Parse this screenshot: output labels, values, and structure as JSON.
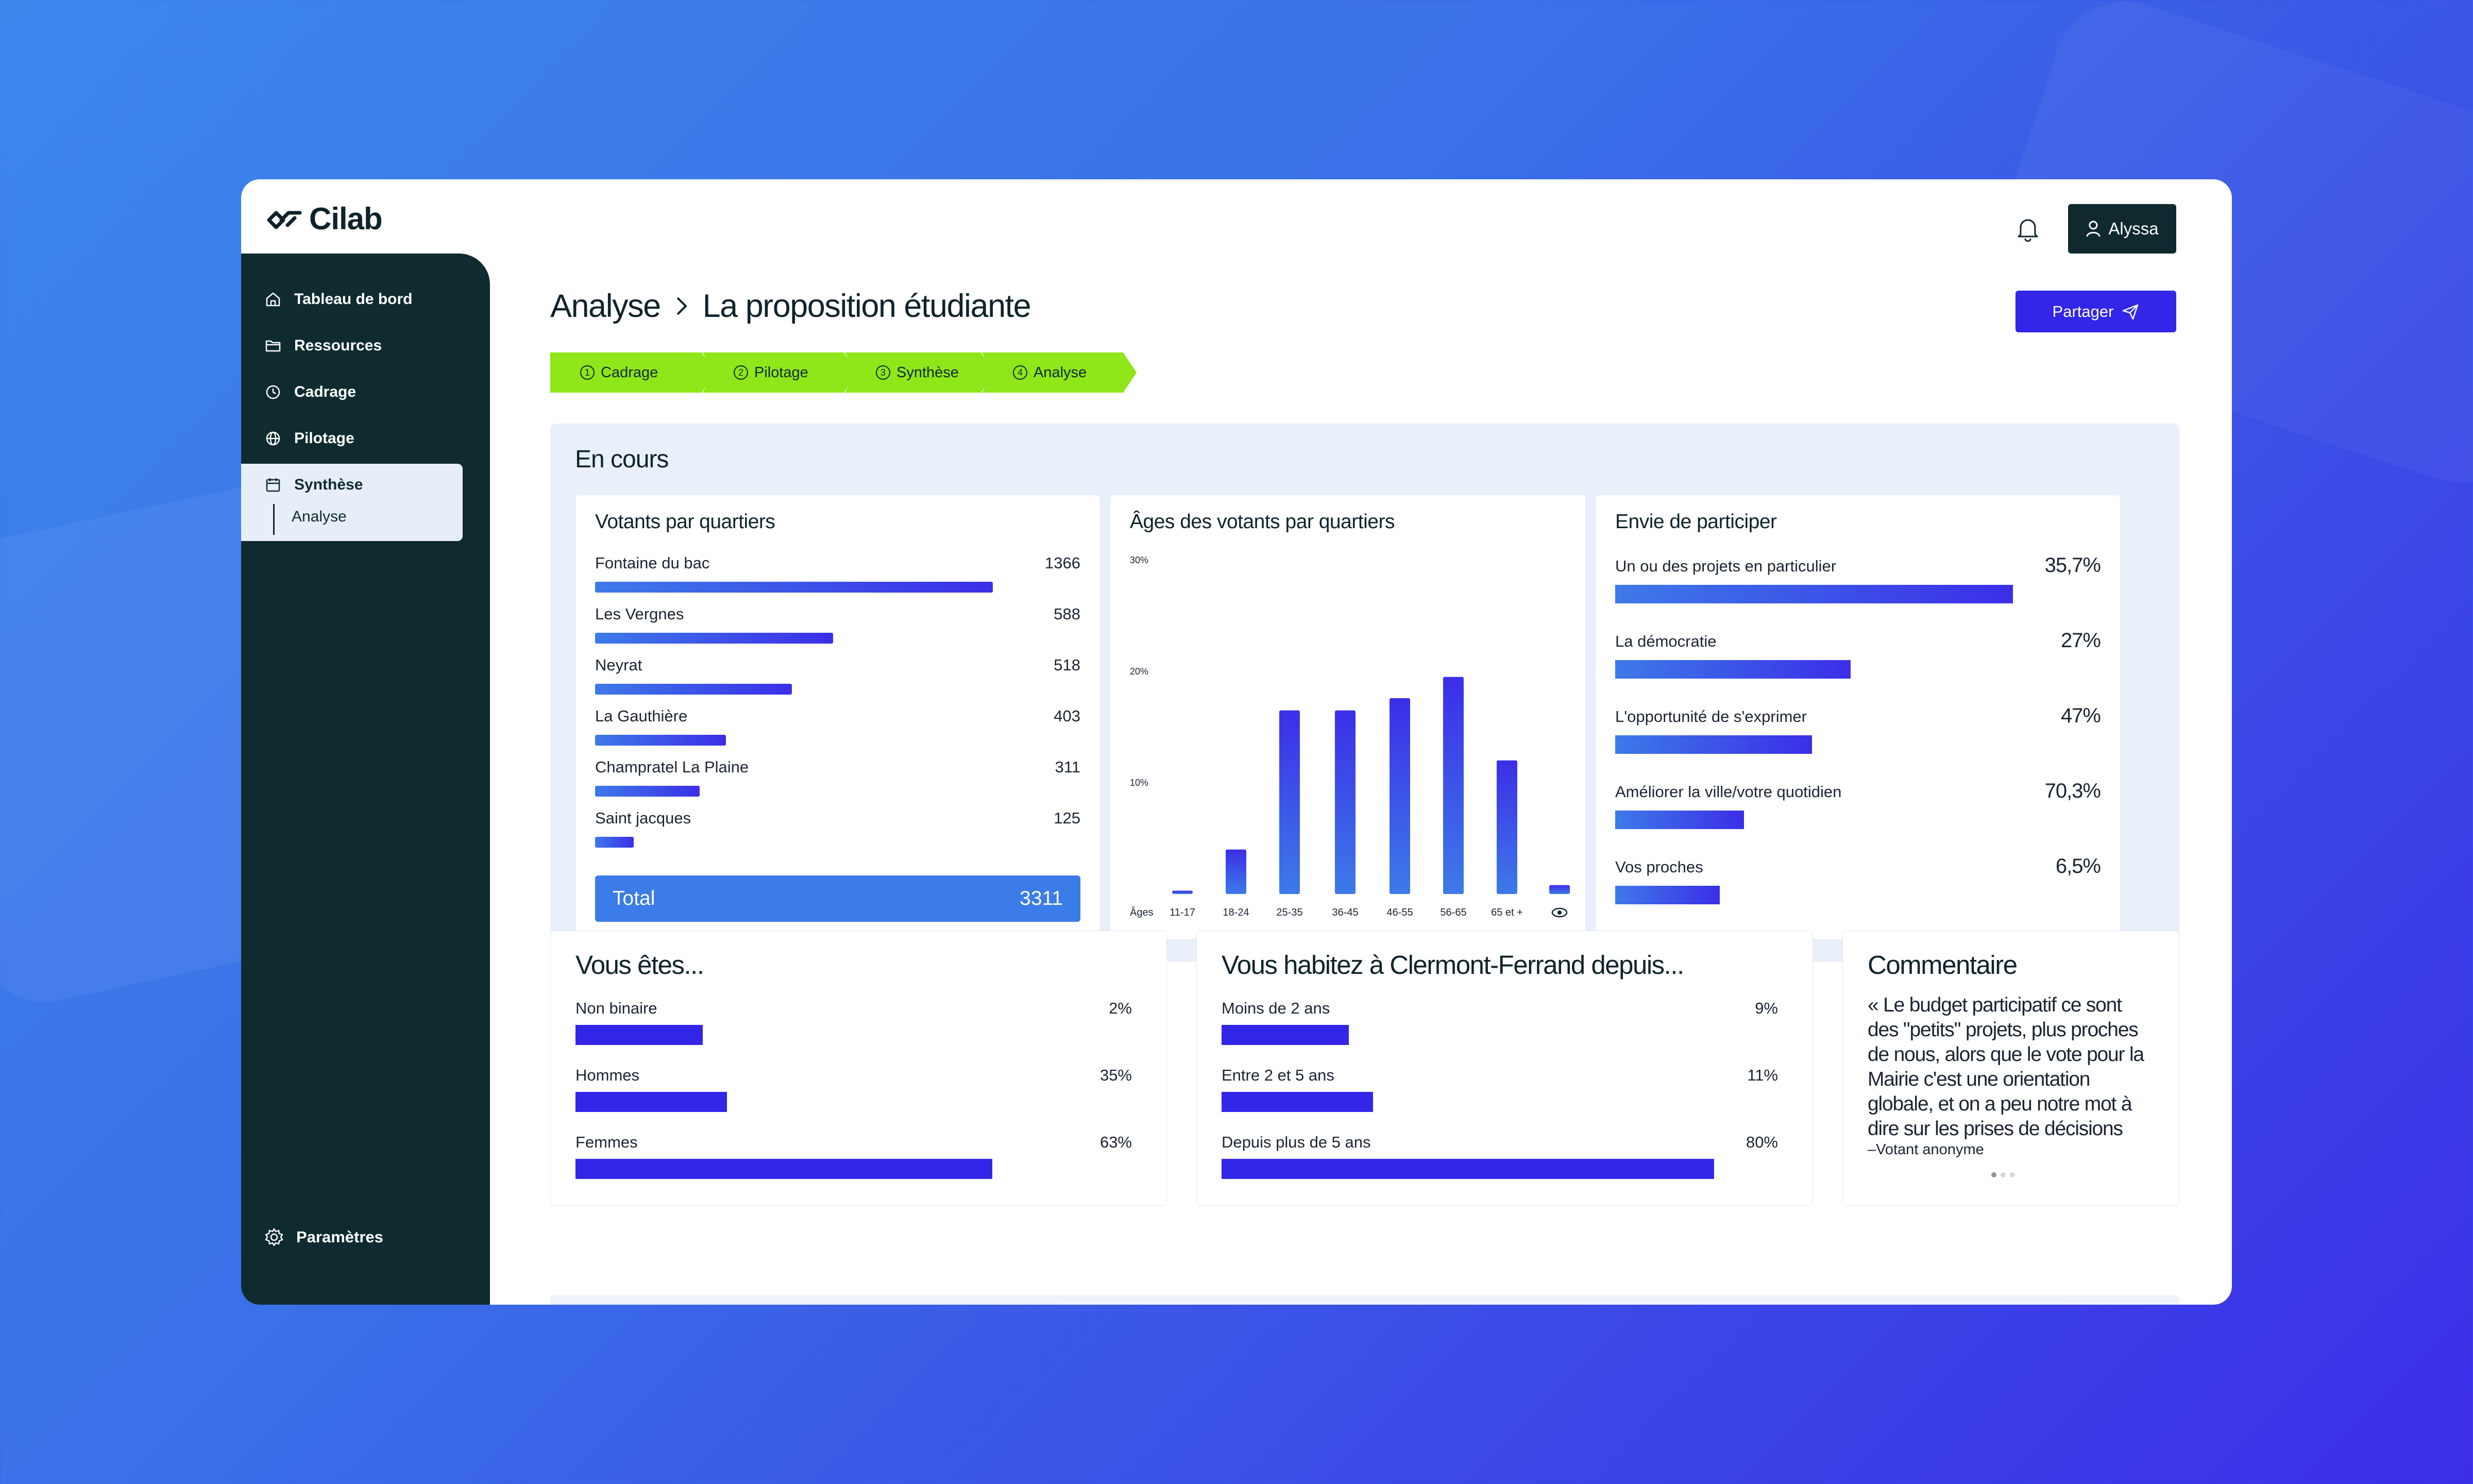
{
  "app": {
    "name": "Cilab",
    "user": "Alyssa"
  },
  "sidebar": {
    "items": [
      {
        "label": "Tableau de bord",
        "icon": "home-icon"
      },
      {
        "label": "Ressources",
        "icon": "folder-icon"
      },
      {
        "label": "Cadrage",
        "icon": "clock-icon"
      },
      {
        "label": "Pilotage",
        "icon": "globe-icon"
      },
      {
        "label": "Synthèse",
        "icon": "calendar-icon"
      }
    ],
    "sub_item": "Analyse",
    "settings": "Paramètres"
  },
  "header": {
    "breadcrumb_root": "Analyse",
    "breadcrumb_current": "La proposition étudiante",
    "share_label": "Partager"
  },
  "steps": [
    {
      "num": "1",
      "label": "Cadrage"
    },
    {
      "num": "2",
      "label": "Pilotage"
    },
    {
      "num": "3",
      "label": "Synthèse"
    },
    {
      "num": "4",
      "label": "Analyse"
    }
  ],
  "colors": {
    "accent": "#3326e8",
    "sidebar": "#0f2b2f",
    "step": "#8fe619",
    "panel": "#e9f0f9"
  },
  "encours": {
    "title": "En cours",
    "votants": {
      "title": "Votants par quartiers",
      "rows": [
        {
          "label": "Fontaine du bac",
          "value": "1366",
          "pct": 0.82
        },
        {
          "label": "Les Vergnes",
          "value": "588",
          "pct": 0.49
        },
        {
          "label": "Neyrat",
          "value": "518",
          "pct": 0.405
        },
        {
          "label": "La Gauthière",
          "value": "403",
          "pct": 0.27
        },
        {
          "label": "Champratel La Plaine",
          "value": "311",
          "pct": 0.215
        },
        {
          "label": "Saint jacques",
          "value": "125",
          "pct": 0.08
        }
      ],
      "total_label": "Total",
      "total_value": "3311"
    },
    "envie": {
      "title": "Envie de participer",
      "rows": [
        {
          "label": "Un ou des projets en particulier",
          "value": "35,7%",
          "pct": 0.82
        },
        {
          "label": "La démocratie",
          "value": "27%",
          "pct": 0.485
        },
        {
          "label": "L'opportunité de s'exprimer",
          "value": "47%",
          "pct": 0.405
        },
        {
          "label": "Améliorer la ville/votre quotidien",
          "value": "70,3%",
          "pct": 0.265
        },
        {
          "label": "Vos proches",
          "value": "6,5%",
          "pct": 0.215
        }
      ]
    }
  },
  "chart_data": {
    "type": "bar",
    "title": "Âges des votants par quartiers",
    "xlabel": "Âges",
    "ylabel": "",
    "categories": [
      "11-17",
      "18-24",
      "25-35",
      "36-45",
      "46-55",
      "56-65",
      "65 et +",
      "eye-icon"
    ],
    "values": [
      0.3,
      4,
      16.5,
      16.5,
      17.6,
      19.5,
      12,
      0.8
    ],
    "yticks": [
      "10%",
      "20%",
      "30%"
    ],
    "ylim": [
      0,
      30
    ],
    "grid": false
  },
  "vous_etes": {
    "title": "Vous êtes...",
    "rows": [
      {
        "label": "Non binaire",
        "value": "2%",
        "pct": 0.229
      },
      {
        "label": "Hommes",
        "value": "35%",
        "pct": 0.272
      },
      {
        "label": "Femmes",
        "value": "63%",
        "pct": 0.749
      }
    ]
  },
  "habitez": {
    "title": "Vous habitez à Clermont-Ferrand depuis...",
    "rows": [
      {
        "label": "Moins de 2 ans",
        "value": "9%",
        "pct": 0.229
      },
      {
        "label": "Entre 2 et 5 ans",
        "value": "11%",
        "pct": 0.272
      },
      {
        "label": "Depuis plus de 5 ans",
        "value": "80%",
        "pct": 0.885
      }
    ]
  },
  "commentaire": {
    "title": "Commentaire",
    "text": "« Le budget participatif ce sont des \"petits\" projets, plus proches de nous, alors que le vote pour la Mairie c'est une orientation globale, et on a peu notre mot à dire sur les prises de décisions",
    "author": "–Votant anonyme"
  }
}
